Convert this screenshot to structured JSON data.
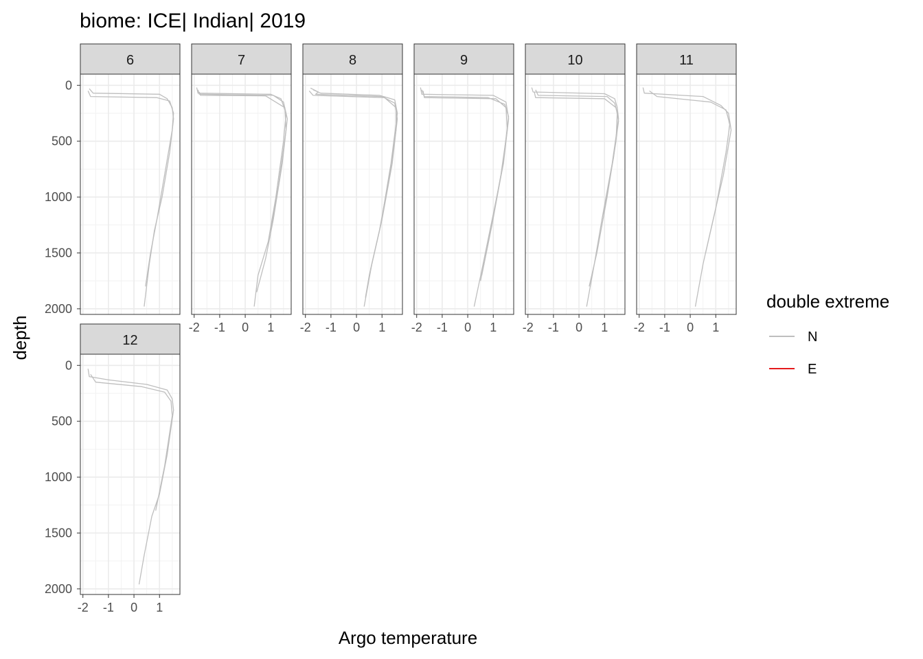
{
  "chart_data": {
    "type": "line",
    "title": "biome: ICE| Indian| 2019",
    "xlabel": "Argo temperature",
    "ylabel": "depth",
    "xlim": [
      -2.1,
      1.8
    ],
    "ylim": [
      2050,
      -100
    ],
    "x_ticks": [
      -2,
      -1,
      0,
      1
    ],
    "x_tick_labels": [
      "-2",
      "-1",
      "0",
      "1"
    ],
    "y_ticks": [
      0,
      500,
      1000,
      1500,
      2000
    ],
    "y_tick_labels": [
      "0",
      "500",
      "1000",
      "1500",
      "2000"
    ],
    "grid": true,
    "facet_variable": "month",
    "legend": {
      "title": "double extreme",
      "placement": "right",
      "entries": [
        {
          "label": "N",
          "color": "#bebebe"
        },
        {
          "label": "E",
          "color": "#e41a1c"
        }
      ]
    },
    "panels": [
      {
        "label": "6",
        "series": [
          {
            "category": "N",
            "points": [
              [
                -1.75,
                30
              ],
              [
                -1.6,
                70
              ],
              [
                1.0,
                80
              ],
              [
                1.3,
                120
              ],
              [
                1.5,
                200
              ],
              [
                1.55,
                300
              ],
              [
                1.4,
                600
              ],
              [
                1.1,
                1000
              ],
              [
                0.8,
                1300
              ],
              [
                0.6,
                1600
              ],
              [
                0.4,
                1980
              ]
            ]
          },
          {
            "category": "N",
            "points": [
              [
                -1.8,
                50
              ],
              [
                -1.7,
                100
              ],
              [
                0.9,
                110
              ],
              [
                1.4,
                140
              ],
              [
                1.55,
                250
              ],
              [
                1.5,
                400
              ],
              [
                1.2,
                800
              ],
              [
                0.9,
                1200
              ],
              [
                0.65,
                1500
              ],
              [
                0.45,
                1800
              ]
            ]
          }
        ]
      },
      {
        "label": "7",
        "series": [
          {
            "category": "N",
            "points": [
              [
                -1.9,
                20
              ],
              [
                -1.85,
                70
              ],
              [
                1.0,
                80
              ],
              [
                1.4,
                120
              ],
              [
                1.6,
                250
              ],
              [
                1.5,
                500
              ],
              [
                1.2,
                1000
              ],
              [
                0.9,
                1400
              ],
              [
                0.5,
                1700
              ],
              [
                0.35,
                1980
              ]
            ]
          },
          {
            "category": "N",
            "points": [
              [
                -1.85,
                40
              ],
              [
                -1.8,
                80
              ],
              [
                1.1,
                90
              ],
              [
                1.5,
                150
              ],
              [
                1.65,
                300
              ],
              [
                1.45,
                700
              ],
              [
                1.1,
                1200
              ],
              [
                0.8,
                1550
              ],
              [
                0.45,
                1850
              ]
            ]
          },
          {
            "category": "N",
            "points": [
              [
                -1.8,
                60
              ],
              [
                -1.75,
                90
              ],
              [
                0.8,
                95
              ],
              [
                1.55,
                200
              ],
              [
                1.6,
                400
              ],
              [
                1.3,
                900
              ],
              [
                1.0,
                1300
              ]
            ]
          }
        ]
      },
      {
        "label": "8",
        "series": [
          {
            "category": "N",
            "points": [
              [
                -1.8,
                25
              ],
              [
                -1.5,
                60
              ],
              [
                -1.6,
                80
              ],
              [
                1.0,
                100
              ],
              [
                1.5,
                160
              ],
              [
                1.6,
                300
              ],
              [
                1.4,
                700
              ],
              [
                1.0,
                1200
              ],
              [
                0.6,
                1600
              ],
              [
                0.3,
                1980
              ]
            ]
          },
          {
            "category": "N",
            "points": [
              [
                -1.85,
                50
              ],
              [
                -1.7,
                90
              ],
              [
                1.1,
                110
              ],
              [
                1.55,
                200
              ],
              [
                1.55,
                400
              ],
              [
                1.3,
                800
              ],
              [
                0.9,
                1300
              ],
              [
                0.5,
                1700
              ],
              [
                0.35,
                1900
              ]
            ]
          },
          {
            "category": "N",
            "points": [
              [
                -1.7,
                40
              ],
              [
                -1.4,
                70
              ],
              [
                0.9,
                90
              ],
              [
                1.5,
                130
              ],
              [
                1.6,
                250
              ],
              [
                1.35,
                700
              ],
              [
                0.95,
                1250
              ],
              [
                0.55,
                1650
              ]
            ]
          }
        ]
      },
      {
        "label": "9",
        "series": [
          {
            "category": "N",
            "points": [
              [
                -1.85,
                20
              ],
              [
                -1.8,
                80
              ],
              [
                1.0,
                90
              ],
              [
                1.5,
                150
              ],
              [
                1.6,
                300
              ],
              [
                1.4,
                700
              ],
              [
                1.0,
                1150
              ],
              [
                0.6,
                1600
              ],
              [
                0.25,
                1980
              ]
            ]
          },
          {
            "category": "N",
            "points": [
              [
                -1.75,
                50
              ],
              [
                -1.7,
                110
              ],
              [
                1.1,
                120
              ],
              [
                1.5,
                200
              ],
              [
                1.55,
                400
              ],
              [
                1.3,
                800
              ],
              [
                0.9,
                1300
              ],
              [
                0.5,
                1750
              ]
            ]
          },
          {
            "category": "N",
            "points": [
              [
                -1.8,
                40
              ],
              [
                -1.7,
                100
              ],
              [
                0.8,
                110
              ],
              [
                1.45,
                170
              ],
              [
                1.6,
                280
              ],
              [
                1.35,
                750
              ],
              [
                0.95,
                1250
              ],
              [
                0.55,
                1700
              ]
            ]
          }
        ]
      },
      {
        "label": "10",
        "series": [
          {
            "category": "N",
            "points": [
              [
                -1.85,
                20
              ],
              [
                -1.8,
                60
              ],
              [
                1.0,
                75
              ],
              [
                1.4,
                120
              ],
              [
                1.5,
                200
              ],
              [
                1.55,
                300
              ],
              [
                1.3,
                700
              ],
              [
                0.9,
                1200
              ],
              [
                0.6,
                1600
              ],
              [
                0.3,
                1980
              ]
            ]
          },
          {
            "category": "N",
            "points": [
              [
                -1.7,
                40
              ],
              [
                -1.6,
                90
              ],
              [
                1.1,
                100
              ],
              [
                1.4,
                160
              ],
              [
                1.5,
                250
              ],
              [
                1.45,
                500
              ],
              [
                1.1,
                1000
              ],
              [
                0.7,
                1500
              ],
              [
                0.4,
                1800
              ]
            ]
          },
          {
            "category": "N",
            "points": [
              [
                -1.75,
                60
              ],
              [
                -1.7,
                110
              ],
              [
                1.0,
                120
              ],
              [
                1.45,
                200
              ],
              [
                1.55,
                320
              ],
              [
                1.35,
                650
              ],
              [
                0.95,
                1150
              ]
            ]
          }
        ]
      },
      {
        "label": "11",
        "series": [
          {
            "category": "N",
            "points": [
              [
                -1.85,
                20
              ],
              [
                -1.8,
                70
              ],
              [
                0.5,
                100
              ],
              [
                1.2,
                180
              ],
              [
                1.5,
                250
              ],
              [
                1.6,
                400
              ],
              [
                1.3,
                800
              ],
              [
                0.9,
                1200
              ],
              [
                0.5,
                1600
              ],
              [
                0.2,
                1980
              ]
            ]
          },
          {
            "category": "N",
            "points": [
              [
                -1.6,
                50
              ],
              [
                -1.3,
                100
              ],
              [
                0.8,
                150
              ],
              [
                1.4,
                220
              ],
              [
                1.55,
                350
              ],
              [
                1.4,
                600
              ],
              [
                1.0,
                1100
              ],
              [
                0.6,
                1500
              ]
            ]
          }
        ]
      },
      {
        "label": "12",
        "series": [
          {
            "category": "N",
            "points": [
              [
                -1.8,
                30
              ],
              [
                -1.75,
                100
              ],
              [
                -1.0,
                130
              ],
              [
                0.5,
                170
              ],
              [
                1.3,
                220
              ],
              [
                1.5,
                300
              ],
              [
                1.55,
                400
              ],
              [
                1.3,
                800
              ],
              [
                1.0,
                1150
              ],
              [
                0.7,
                1350
              ],
              [
                0.4,
                1700
              ],
              [
                0.2,
                1960
              ]
            ]
          },
          {
            "category": "N",
            "points": [
              [
                -1.7,
                80
              ],
              [
                -1.5,
                150
              ],
              [
                0.3,
                190
              ],
              [
                1.2,
                240
              ],
              [
                1.45,
                320
              ],
              [
                1.5,
                450
              ],
              [
                1.2,
                900
              ],
              [
                0.85,
                1300
              ]
            ]
          }
        ]
      }
    ]
  }
}
